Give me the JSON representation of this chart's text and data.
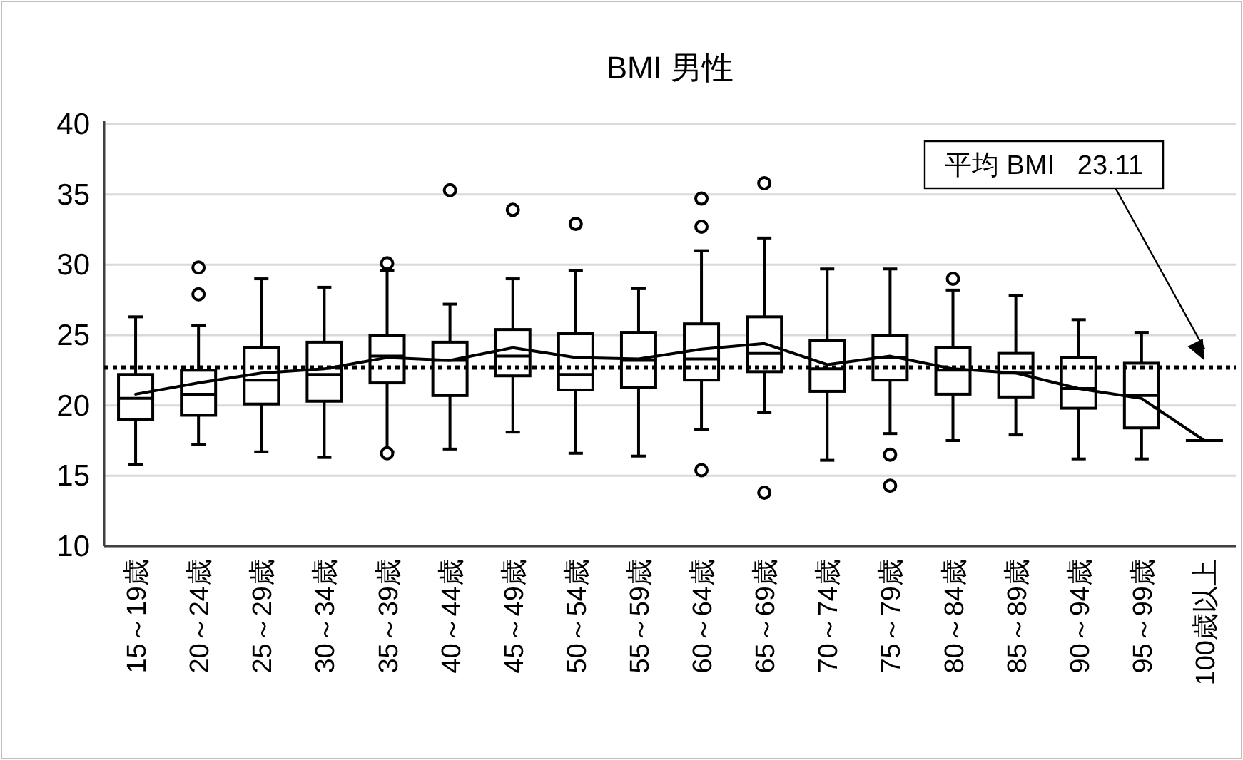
{
  "chart_data": {
    "type": "box",
    "title": "BMI 男性",
    "categories": [
      "15～19歳",
      "20～24歳",
      "25～29歳",
      "30～34歳",
      "35～39歳",
      "40～44歳",
      "45～49歳",
      "50～54歳",
      "55～59歳",
      "60～64歳",
      "65～69歳",
      "70～74歳",
      "75～79歳",
      "80～84歳",
      "85～89歳",
      "90～94歳",
      "95～99歳",
      "100歳以上"
    ],
    "boxes": [
      {
        "low": 15.8,
        "q1": 19.0,
        "median": 20.5,
        "q3": 22.2,
        "high": 26.3
      },
      {
        "low": 17.2,
        "q1": 19.3,
        "median": 20.8,
        "q3": 22.5,
        "high": 25.7,
        "outliers": [
          29.8,
          27.9
        ]
      },
      {
        "low": 16.7,
        "q1": 20.1,
        "median": 21.8,
        "q3": 24.1,
        "high": 29.0
      },
      {
        "low": 16.3,
        "q1": 20.3,
        "median": 22.2,
        "q3": 24.5,
        "high": 28.4
      },
      {
        "low": 16.7,
        "q1": 21.6,
        "median": 23.5,
        "q3": 25.0,
        "high": 29.6,
        "outliers": [
          30.1,
          16.6
        ]
      },
      {
        "low": 16.9,
        "q1": 20.7,
        "median": 23.2,
        "q3": 24.5,
        "high": 27.2,
        "outliers": [
          35.3
        ]
      },
      {
        "low": 18.1,
        "q1": 22.1,
        "median": 23.5,
        "q3": 25.4,
        "high": 29.0,
        "outliers": [
          33.9
        ]
      },
      {
        "low": 16.6,
        "q1": 21.1,
        "median": 22.2,
        "q3": 25.1,
        "high": 29.6,
        "outliers": [
          32.9
        ]
      },
      {
        "low": 16.4,
        "q1": 21.3,
        "median": 23.2,
        "q3": 25.2,
        "high": 28.3
      },
      {
        "low": 18.3,
        "q1": 21.8,
        "median": 23.3,
        "q3": 25.8,
        "high": 31.0,
        "outliers": [
          34.7,
          32.7,
          15.4
        ]
      },
      {
        "low": 19.5,
        "q1": 22.4,
        "median": 23.7,
        "q3": 26.3,
        "high": 31.9,
        "outliers": [
          35.8,
          13.8
        ]
      },
      {
        "low": 16.1,
        "q1": 21.0,
        "median": 22.6,
        "q3": 24.6,
        "high": 29.7
      },
      {
        "low": 18.0,
        "q1": 21.8,
        "median": 23.4,
        "q3": 25.0,
        "high": 29.7,
        "outliers": [
          16.5,
          14.3
        ]
      },
      {
        "low": 17.5,
        "q1": 20.8,
        "median": 22.5,
        "q3": 24.1,
        "high": 28.2,
        "outliers": [
          29.0
        ]
      },
      {
        "low": 17.9,
        "q1": 20.6,
        "median": 22.3,
        "q3": 23.7,
        "high": 27.8
      },
      {
        "low": 16.2,
        "q1": 19.8,
        "median": 21.2,
        "q3": 23.4,
        "high": 26.1
      },
      {
        "low": 16.2,
        "q1": 18.4,
        "median": 20.7,
        "q3": 23.0,
        "high": 25.2
      },
      {
        "low": 17.5,
        "q1": 17.5,
        "median": 17.5,
        "q3": 17.5,
        "high": 17.5
      }
    ],
    "series": [
      {
        "type": "line",
        "color": "#000000",
        "values": [
          20.8,
          21.6,
          22.3,
          22.6,
          23.4,
          23.2,
          24.1,
          23.4,
          23.3,
          24.0,
          24.4,
          22.9,
          23.5,
          22.6,
          22.3,
          21.2,
          20.5,
          17.5
        ]
      }
    ],
    "ylim": [
      10,
      40
    ],
    "yticks": [
      10,
      15,
      20,
      25,
      30,
      35,
      40
    ],
    "grid": "y",
    "ref_lines": [
      {
        "axis": "y",
        "value": 22.7,
        "color": "#000000",
        "line_style": "dotted"
      }
    ],
    "annotations": [
      "平均 BMI   23.11"
    ]
  }
}
